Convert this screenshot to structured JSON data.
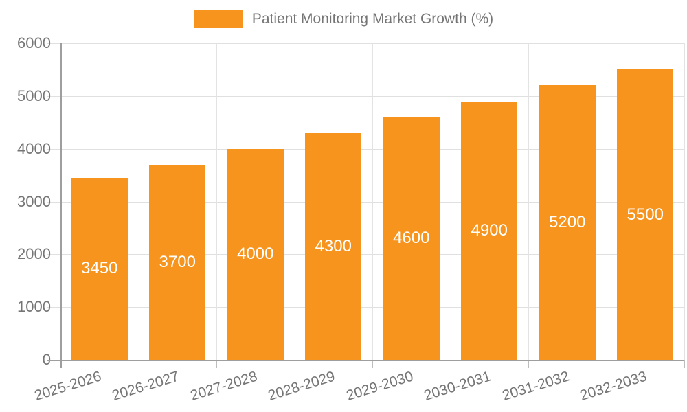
{
  "legend": {
    "series_label": "Patient Monitoring Market Growth (%)"
  },
  "chart_data": {
    "type": "bar",
    "title": "Patient Monitoring Market Growth (%)",
    "categories": [
      "2025-2026",
      "2026-2027",
      "2027-2028",
      "2028-2029",
      "2029-2030",
      "2030-2031",
      "2031-2032",
      "2032-2033"
    ],
    "values": [
      3450,
      3700,
      4000,
      4300,
      4600,
      4900,
      5200,
      5500
    ],
    "xlabel": "",
    "ylabel": "",
    "ylim": [
      0,
      6000
    ],
    "yticks": [
      0,
      1000,
      2000,
      3000,
      4000,
      5000,
      6000
    ],
    "grid": true,
    "legend_position": "top-center",
    "bar_label_position": "inside-middle",
    "colors": {
      "bar": "#F7941E",
      "bar_label": "#FFFFFF",
      "axis_text": "#757575",
      "gridline": "#E0E0E0",
      "axis_line": "#9E9E9E",
      "tick": "#BDBDBD",
      "background": "#FFFFFF"
    }
  }
}
